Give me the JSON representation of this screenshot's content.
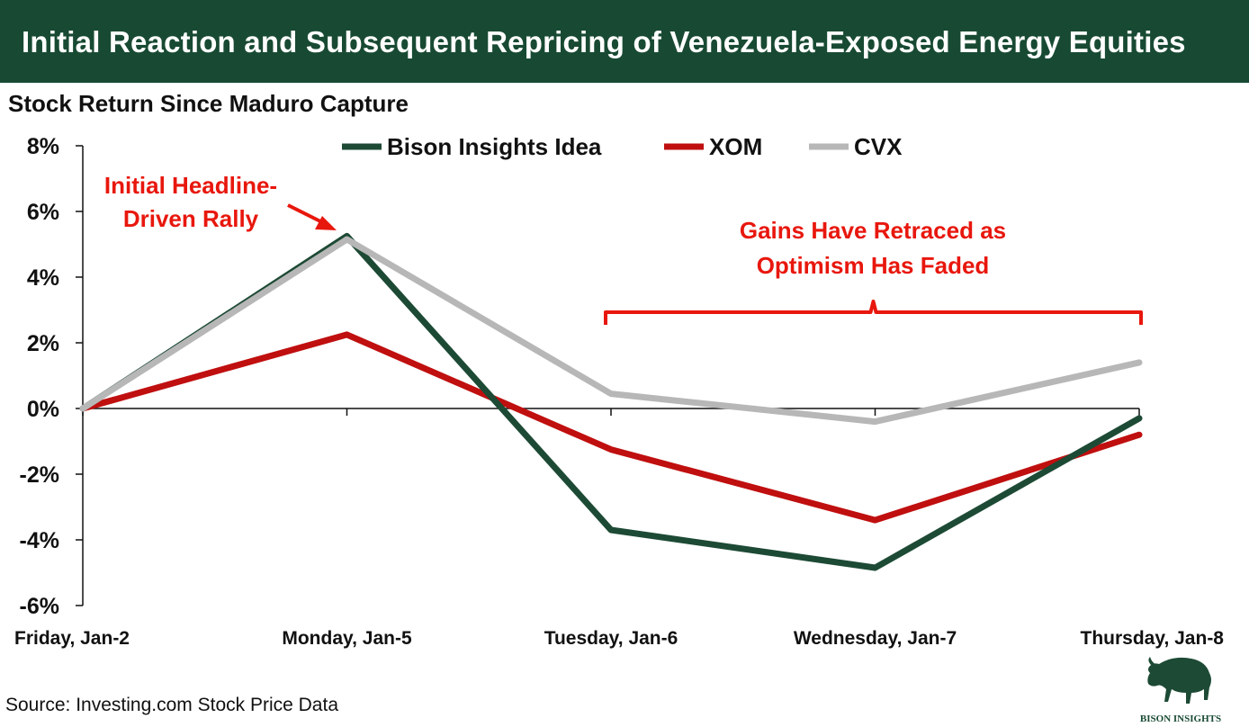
{
  "title": "Initial Reaction and Subsequent Repricing of Venezuela-Exposed Energy Equities",
  "subtitle": "Stock Return Since Maduro Capture",
  "source": "Source: Investing.com Stock Price Data",
  "logo": {
    "text": "BISON INSIGHTS",
    "icon": "bison-icon"
  },
  "colors": {
    "title_bg": "#184a33",
    "bison": "#1d4a35",
    "xom": "#c00f0f",
    "cvx": "#b7b7b7",
    "annotation": "#e8170d",
    "axis": "#111111"
  },
  "chart_data": {
    "type": "line",
    "categories": [
      "Friday, Jan-2",
      "Monday, Jan-5",
      "Tuesday, Jan-6",
      "Wednesday, Jan-7",
      "Thursday, Jan-8"
    ],
    "series": [
      {
        "name": "Bison Insights Idea",
        "values": [
          0.0,
          5.25,
          -3.7,
          -4.85,
          -0.3
        ]
      },
      {
        "name": "XOM",
        "values": [
          0.0,
          2.25,
          -1.25,
          -3.4,
          -0.8
        ]
      },
      {
        "name": "CVX",
        "values": [
          0.0,
          5.15,
          0.45,
          -0.4,
          1.4
        ]
      }
    ],
    "ylim": [
      -6,
      8
    ],
    "yticks": [
      8,
      6,
      4,
      2,
      0,
      -2,
      -4,
      -6
    ],
    "ytick_labels": [
      "8%",
      "6%",
      "4%",
      "2%",
      "0%",
      "-2%",
      "-4%",
      "-6%"
    ],
    "ylabel": "Stock Return Since Maduro Capture",
    "xlabel": "",
    "legend_position": "top",
    "grid": false,
    "annotations": [
      {
        "lines": [
          "Initial Headline-",
          "Driven Rally"
        ],
        "points_to": "Monday, Jan-5"
      },
      {
        "lines": [
          "Gains Have Retraced as",
          "Optimism Has Faded"
        ],
        "spans": [
          "Tuesday, Jan-6",
          "Thursday, Jan-8"
        ]
      }
    ]
  }
}
